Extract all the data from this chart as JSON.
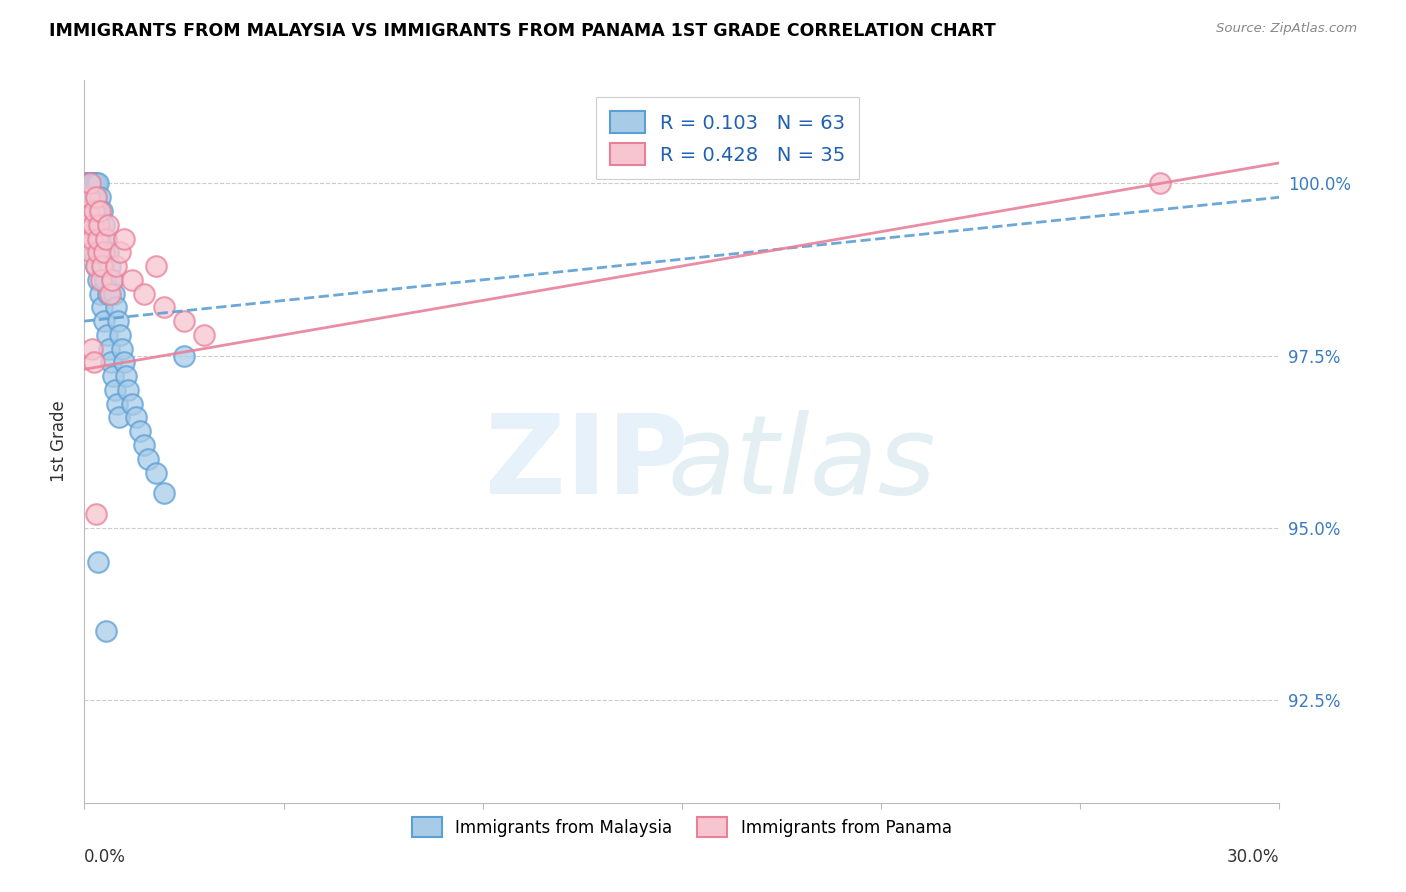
{
  "title": "IMMIGRANTS FROM MALAYSIA VS IMMIGRANTS FROM PANAMA 1ST GRADE CORRELATION CHART",
  "source": "Source: ZipAtlas.com",
  "ylabel": "1st Grade",
  "xlim": [
    0.0,
    30.0
  ],
  "ylim": [
    91.0,
    101.5
  ],
  "R_malaysia": 0.103,
  "N_malaysia": 63,
  "R_panama": 0.428,
  "N_panama": 35,
  "color_malaysia_face": "#a8cce8",
  "color_malaysia_edge": "#5b9fd4",
  "color_panama_face": "#f7c5d0",
  "color_panama_edge": "#e8809a",
  "color_line_malaysia": "#5b9fd4",
  "color_line_panama": "#e8809a",
  "legend_label_malaysia": "Immigrants from Malaysia",
  "legend_label_panama": "Immigrants from Panama",
  "yticks": [
    92.5,
    95.0,
    97.5,
    100.0
  ],
  "malaysia_x": [
    0.05,
    0.08,
    0.1,
    0.1,
    0.12,
    0.13,
    0.15,
    0.15,
    0.17,
    0.18,
    0.2,
    0.2,
    0.22,
    0.25,
    0.25,
    0.27,
    0.28,
    0.3,
    0.3,
    0.32,
    0.33,
    0.35,
    0.35,
    0.37,
    0.4,
    0.4,
    0.42,
    0.45,
    0.45,
    0.48,
    0.5,
    0.5,
    0.52,
    0.55,
    0.57,
    0.6,
    0.6,
    0.63,
    0.65,
    0.68,
    0.7,
    0.72,
    0.75,
    0.78,
    0.8,
    0.83,
    0.85,
    0.88,
    0.9,
    0.95,
    1.0,
    1.05,
    1.1,
    1.2,
    1.3,
    1.4,
    1.5,
    1.6,
    1.8,
    2.0,
    2.5,
    0.35,
    0.55
  ],
  "malaysia_y": [
    100.0,
    100.0,
    100.0,
    99.8,
    100.0,
    100.0,
    100.0,
    99.6,
    100.0,
    99.4,
    100.0,
    99.2,
    99.8,
    100.0,
    99.0,
    99.6,
    100.0,
    99.8,
    98.8,
    99.4,
    100.0,
    99.6,
    98.6,
    99.2,
    99.8,
    98.4,
    99.0,
    99.6,
    98.2,
    98.8,
    99.4,
    98.0,
    98.6,
    99.2,
    97.8,
    99.0,
    98.4,
    97.6,
    98.8,
    97.4,
    98.6,
    97.2,
    98.4,
    97.0,
    98.2,
    96.8,
    98.0,
    96.6,
    97.8,
    97.6,
    97.4,
    97.2,
    97.0,
    96.8,
    96.6,
    96.4,
    96.2,
    96.0,
    95.8,
    95.5,
    97.5,
    94.5,
    93.5
  ],
  "panama_x": [
    0.05,
    0.08,
    0.1,
    0.12,
    0.15,
    0.17,
    0.2,
    0.22,
    0.25,
    0.28,
    0.3,
    0.33,
    0.35,
    0.38,
    0.4,
    0.43,
    0.45,
    0.5,
    0.55,
    0.6,
    0.65,
    0.7,
    0.8,
    0.9,
    1.0,
    1.2,
    1.5,
    2.0,
    2.5,
    3.0,
    0.2,
    0.25,
    0.3,
    1.8,
    27.0
  ],
  "panama_y": [
    99.2,
    99.4,
    99.6,
    99.8,
    100.0,
    99.0,
    99.2,
    99.4,
    99.6,
    99.8,
    98.8,
    99.0,
    99.2,
    99.4,
    99.6,
    98.6,
    98.8,
    99.0,
    99.2,
    99.4,
    98.4,
    98.6,
    98.8,
    99.0,
    99.2,
    98.6,
    98.4,
    98.2,
    98.0,
    97.8,
    97.6,
    97.4,
    95.2,
    98.8,
    100.0
  ]
}
